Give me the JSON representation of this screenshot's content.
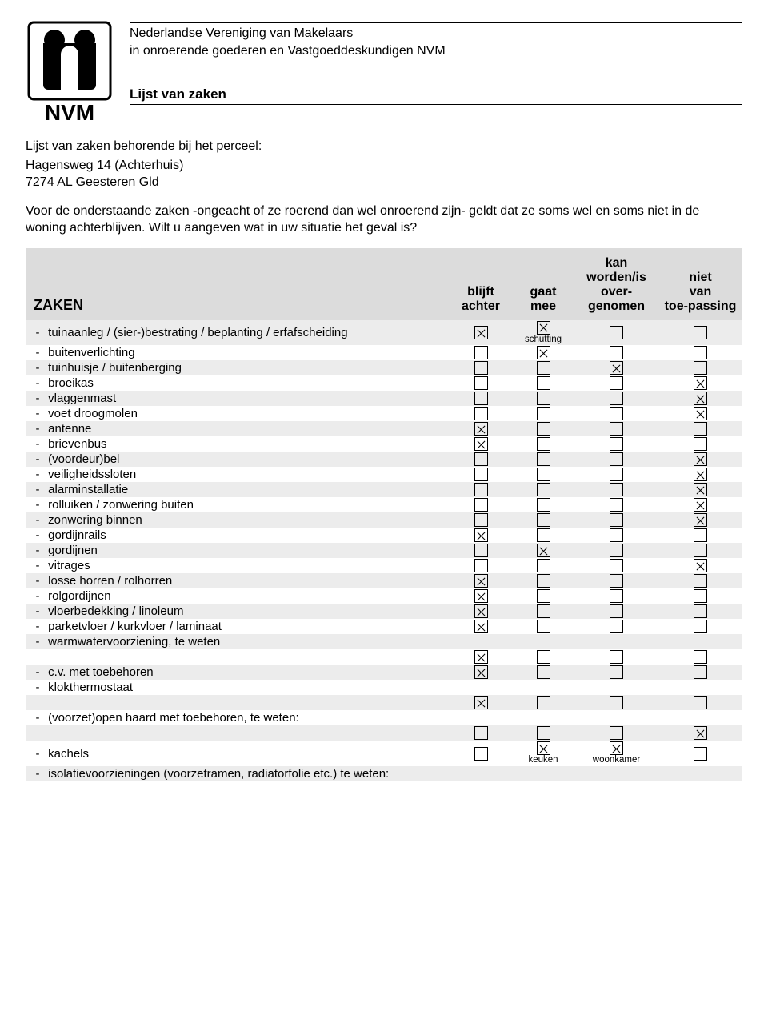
{
  "header": {
    "org_line1": "Nederlandse Vereniging van Makelaars",
    "org_line2": "in onroerende goederen en Vastgoeddeskundigen NVM",
    "title": "Lijst van zaken",
    "logo_text": "NVM"
  },
  "intro": {
    "line1": "Lijst van zaken behorende bij het perceel:",
    "addr1": "Hagensweg 14 (Achterhuis)",
    "addr2": "7274 AL  Geesteren Gld",
    "para": "Voor de onderstaande zaken -ongeacht of ze roerend dan wel onroerend zijn- geldt dat ze soms wel en soms niet in de woning achterblijven. Wilt u aangeven wat in uw situatie het geval is?"
  },
  "columns": {
    "c0": "ZAKEN",
    "c1": "blijft achter",
    "c2": "gaat mee",
    "c3": "kan worden/is over-genomen",
    "c4": "niet van toe-passing"
  },
  "rows": [
    {
      "label": "tuinaanleg / (sier-)bestrating / beplanting / erfafscheiding",
      "checks": [
        true,
        true,
        false,
        false
      ],
      "note2": "schutting"
    },
    {
      "label": "buitenverlichting",
      "checks": [
        false,
        true,
        false,
        false
      ]
    },
    {
      "label": "tuinhuisje / buitenberging",
      "checks": [
        false,
        false,
        true,
        false
      ]
    },
    {
      "label": "broeikas",
      "checks": [
        false,
        false,
        false,
        true
      ]
    },
    {
      "label": "vlaggenmast",
      "checks": [
        false,
        false,
        false,
        true
      ]
    },
    {
      "label": "voet droogmolen",
      "checks": [
        false,
        false,
        false,
        true
      ]
    },
    {
      "label": "antenne",
      "checks": [
        true,
        false,
        false,
        false
      ]
    },
    {
      "label": "brievenbus",
      "checks": [
        true,
        false,
        false,
        false
      ]
    },
    {
      "label": "(voordeur)bel",
      "checks": [
        false,
        false,
        false,
        true
      ]
    },
    {
      "label": "veiligheidssloten",
      "checks": [
        false,
        false,
        false,
        true
      ]
    },
    {
      "label": "alarminstallatie",
      "checks": [
        false,
        false,
        false,
        true
      ]
    },
    {
      "label": "rolluiken / zonwering buiten",
      "checks": [
        false,
        false,
        false,
        true
      ]
    },
    {
      "label": "zonwering binnen",
      "checks": [
        false,
        false,
        false,
        true
      ]
    },
    {
      "label": "gordijnrails",
      "checks": [
        true,
        false,
        false,
        false
      ]
    },
    {
      "label": "gordijnen",
      "checks": [
        false,
        true,
        false,
        false
      ]
    },
    {
      "label": "vitrages",
      "checks": [
        false,
        false,
        false,
        true
      ]
    },
    {
      "label": "losse horren / rolhorren",
      "checks": [
        true,
        false,
        false,
        false
      ]
    },
    {
      "label": "rolgordijnen",
      "checks": [
        true,
        false,
        false,
        false
      ]
    },
    {
      "label": "vloerbedekking / linoleum",
      "checks": [
        true,
        false,
        false,
        false
      ]
    },
    {
      "label": "parketvloer / kurkvloer / laminaat",
      "checks": [
        true,
        false,
        false,
        false
      ]
    },
    {
      "label": "warmwatervoorziening, te weten",
      "checks": null
    },
    {
      "label": "",
      "indent": true,
      "checks": [
        true,
        false,
        false,
        false
      ]
    },
    {
      "label": "c.v. met toebehoren",
      "checks": [
        true,
        false,
        false,
        false
      ]
    },
    {
      "label": "klokthermostaat",
      "checks": null
    },
    {
      "label": "",
      "indent": true,
      "checks": [
        true,
        false,
        false,
        false
      ]
    },
    {
      "label": "(voorzet)open haard met toebehoren, te weten:",
      "checks": null
    },
    {
      "label": "",
      "indent": true,
      "checks": [
        false,
        false,
        false,
        true
      ]
    },
    {
      "label": "kachels",
      "checks": [
        false,
        true,
        true,
        false
      ],
      "note2": "keuken",
      "note3": "woonkamer"
    },
    {
      "label": "isolatievoorzieningen (voorzetramen, radiatorfolie etc.) te weten:",
      "checks": null
    }
  ],
  "style": {
    "row_even_bg": "#ececec",
    "header_bg": "#dcdcdc"
  }
}
